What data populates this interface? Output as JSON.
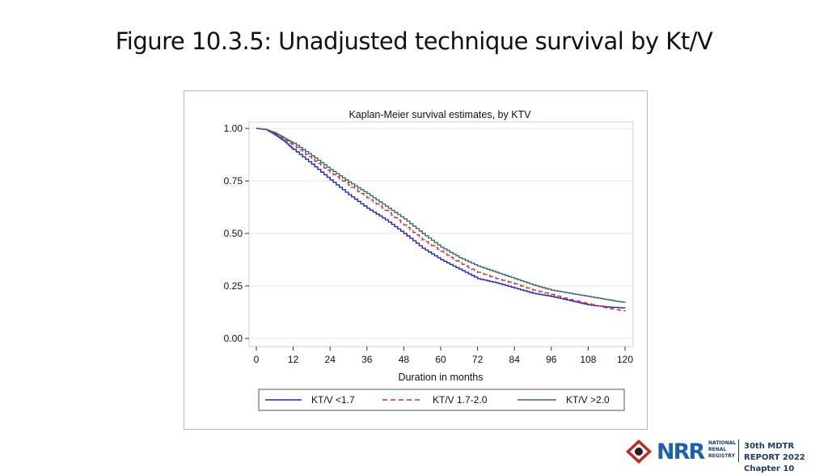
{
  "slide": {
    "title": "Figure 10.3.5: Unadjusted technique survival by Kt/V"
  },
  "footer": {
    "logo_letters": "NRR",
    "logo_sub": [
      "NATIONAL",
      "RENAL",
      "REGISTRY"
    ],
    "report_line1": "30th MDTR REPORT 2022",
    "report_line2": "Chapter 10"
  },
  "chart_data": {
    "type": "line",
    "title": "Kaplan-Meier survival estimates, by KTV",
    "xlabel": "Duration in months",
    "ylabel": "",
    "xlim": [
      0,
      120
    ],
    "ylim": [
      0,
      1
    ],
    "x_ticks": [
      "0",
      "12",
      "24",
      "36",
      "48",
      "60",
      "72",
      "84",
      "96",
      "108",
      "120"
    ],
    "y_ticks": [
      "0.00",
      "0.25",
      "0.50",
      "0.75",
      "1.00"
    ],
    "grid": true,
    "legend_position": "bottom",
    "series": [
      {
        "name": "KT/V <1.7",
        "color": "#2323c8",
        "style": "solid",
        "x": [
          0,
          3,
          6,
          9,
          12,
          18,
          24,
          30,
          36,
          42,
          48,
          54,
          60,
          66,
          72,
          78,
          84,
          90,
          96,
          102,
          108,
          114,
          120
        ],
        "y": [
          1.0,
          0.995,
          0.97,
          0.94,
          0.9,
          0.83,
          0.755,
          0.685,
          0.62,
          0.565,
          0.5,
          0.43,
          0.375,
          0.33,
          0.285,
          0.265,
          0.24,
          0.215,
          0.2,
          0.18,
          0.16,
          0.15,
          0.145
        ]
      },
      {
        "name": "KT/V 1.7-2.0",
        "color": "#d62a2a",
        "style": "dashed",
        "x": [
          0,
          3,
          6,
          9,
          12,
          18,
          24,
          30,
          36,
          42,
          48,
          54,
          60,
          66,
          72,
          78,
          84,
          90,
          96,
          102,
          108,
          114,
          120
        ],
        "y": [
          1.0,
          0.995,
          0.975,
          0.95,
          0.92,
          0.855,
          0.79,
          0.73,
          0.67,
          0.61,
          0.54,
          0.47,
          0.415,
          0.36,
          0.315,
          0.285,
          0.26,
          0.23,
          0.21,
          0.185,
          0.165,
          0.145,
          0.13
        ]
      },
      {
        "name": "KT/V >2.0",
        "color": "#3a6a6a",
        "style": "solid",
        "x": [
          0,
          3,
          6,
          9,
          12,
          18,
          24,
          30,
          36,
          42,
          48,
          54,
          60,
          66,
          72,
          78,
          84,
          90,
          96,
          102,
          108,
          114,
          120
        ],
        "y": [
          1.0,
          0.995,
          0.98,
          0.955,
          0.93,
          0.87,
          0.805,
          0.745,
          0.69,
          0.63,
          0.57,
          0.5,
          0.435,
          0.385,
          0.345,
          0.315,
          0.285,
          0.255,
          0.23,
          0.215,
          0.2,
          0.185,
          0.17
        ]
      }
    ]
  },
  "colors": {
    "grid": "#e4e4e4",
    "axis": "#333333",
    "frame": "#b8b8b8",
    "brand_blue": "#1e5fb0",
    "brand_dark": "#1e3a70",
    "logo_red": "#c0282a"
  }
}
